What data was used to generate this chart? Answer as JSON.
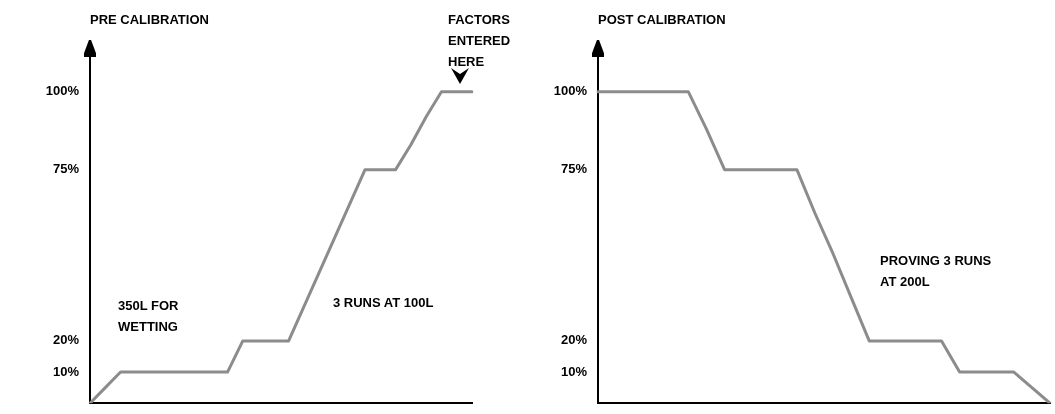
{
  "chart_data": [
    {
      "type": "line",
      "title": "PRE CALIBRATION",
      "categories": [
        null,
        null,
        null,
        null,
        null,
        null,
        null,
        null,
        null,
        null,
        null,
        null,
        null,
        null,
        null,
        null,
        null,
        null,
        null,
        null,
        null,
        null,
        null,
        null,
        null,
        null
      ],
      "series": [
        {
          "color": "#8c8c8c",
          "values": [
            0,
            5,
            10,
            10,
            10,
            10,
            10,
            10,
            10,
            10,
            20,
            20,
            20,
            20,
            31,
            42,
            53,
            64,
            75,
            75,
            75,
            83,
            92,
            100,
            100,
            100
          ]
        }
      ],
      "ylim": [
        0,
        107
      ],
      "yticks": [
        {
          "value": 10,
          "label": "10%"
        },
        {
          "value": 20,
          "label": "20%"
        },
        {
          "value": 75,
          "label": "75%"
        },
        {
          "value": 100,
          "label": "100%"
        }
      ],
      "tick_labels": "y",
      "grid": false,
      "legend": false,
      "marker": "none",
      "line_style": "solid",
      "annotations": [
        "350L FOR\nWETTING",
        "3 RUNS AT 100L",
        "FACTORS\nENTERED\nHERE"
      ]
    },
    {
      "type": "line",
      "title": "POST CALIBRATION",
      "categories": [
        null,
        null,
        null,
        null,
        null,
        null,
        null,
        null,
        null,
        null,
        null,
        null,
        null,
        null,
        null,
        null,
        null,
        null,
        null,
        null,
        null,
        null,
        null,
        null,
        null,
        null
      ],
      "series": [
        {
          "color": "#8c8c8c",
          "values": [
            100,
            100,
            100,
            100,
            100,
            100,
            88,
            75,
            75,
            75,
            75,
            75,
            61,
            48,
            34,
            20,
            20,
            20,
            20,
            20,
            10,
            10,
            10,
            10,
            5,
            0
          ]
        }
      ],
      "ylim": [
        0,
        107
      ],
      "yticks": [
        {
          "value": 10,
          "label": "10%"
        },
        {
          "value": 20,
          "label": "20%"
        },
        {
          "value": 75,
          "label": "75%"
        },
        {
          "value": 100,
          "label": "100%"
        }
      ],
      "tick_labels": "y",
      "grid": false,
      "legend": false,
      "marker": "none",
      "line_style": "solid",
      "annotations": [
        "PROVING 3 RUNS\nAT 200L"
      ]
    }
  ]
}
